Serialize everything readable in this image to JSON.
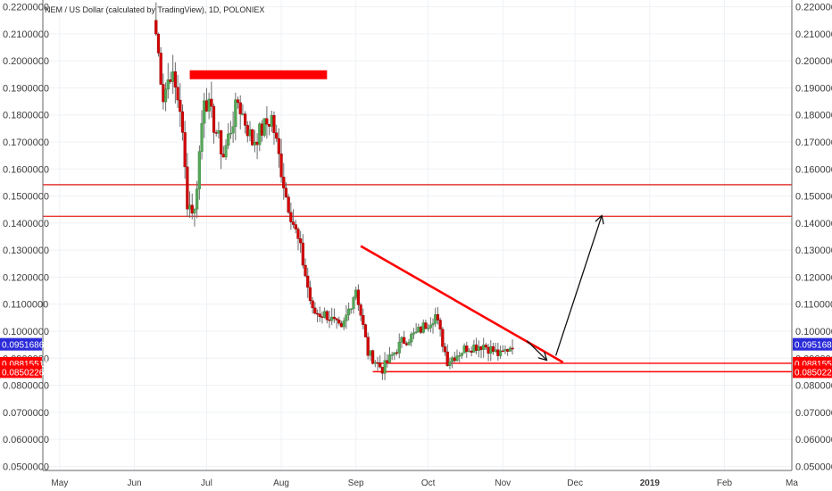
{
  "chart_data": {
    "type": "candlestick",
    "title": "NEM / US Dollar (calculated by TradingView), 1D, POLONIEX",
    "price_axis": {
      "ticks": [
        "0.2200000",
        "0.2100000",
        "0.2000000",
        "0.1900000",
        "0.1800000",
        "0.1700000",
        "0.1600000",
        "0.1500000",
        "0.1400000",
        "0.1300000",
        "0.1200000",
        "0.1100000",
        "0.1000000",
        "0.0900000",
        "0.0800000",
        "0.0700000",
        "0.0600000",
        "0.0500000"
      ],
      "tick_values": [
        0.22,
        0.21,
        0.2,
        0.19,
        0.18,
        0.17,
        0.16,
        0.15,
        0.14,
        0.13,
        0.12,
        0.11,
        0.1,
        0.09,
        0.08,
        0.07,
        0.06,
        0.05
      ],
      "range": [
        0.0485,
        0.2225
      ]
    },
    "time_axis": {
      "labels": [
        "May",
        "Jun",
        "Jul",
        "Aug",
        "Sep",
        "Oct",
        "Nov",
        "Dec",
        "2019",
        "Feb",
        "Ma"
      ],
      "bold_labels": [
        "2019"
      ],
      "range": [
        "2018-04-24",
        "2019-03-01"
      ]
    },
    "price_tags": [
      {
        "value": 0.09516868,
        "label": "0.09516868",
        "color": "#2b2bd9"
      },
      {
        "value": 0.08815512,
        "label": "0.08815512",
        "color": "#ff0000"
      },
      {
        "value": 0.0850226,
        "label": "0.08502260",
        "color": "#ff0000"
      }
    ],
    "horizontal_lines": [
      {
        "value": 0.1542,
        "color": "#e53935"
      },
      {
        "value": 0.1425,
        "color": "#e53935"
      },
      {
        "from": "2018-09-10",
        "value": 0.08815512,
        "color": "#ff0000"
      },
      {
        "from": "2018-09-08",
        "value": 0.0850226,
        "color": "#ff0000"
      }
    ],
    "highlight_box": {
      "from": "2018-06-24",
      "to": "2018-08-20",
      "top": 0.1965,
      "bottom": 0.1932,
      "color": "#ff0000"
    },
    "trendline": {
      "from": [
        "2018-09-03",
        0.1315
      ],
      "to": [
        "2018-11-26",
        0.0885
      ],
      "color": "#ff0000"
    },
    "arrows": [
      {
        "from": [
          "2018-11-11",
          0.0965
        ],
        "to": [
          "2018-11-19",
          0.0895
        ],
        "color": "#111111"
      },
      {
        "from": [
          "2018-11-23",
          0.091
        ],
        "to": [
          "2018-12-12",
          0.1425
        ],
        "color": "#111111"
      }
    ],
    "colors": {
      "up": "#53a957",
      "down": "#d50000",
      "grid": "#eef1f5"
    },
    "grid": true,
    "ohlc_sampled": [
      {
        "date": "2018-06-10",
        "o": 0.215,
        "h": 0.221,
        "l": 0.206,
        "c": 0.21
      },
      {
        "date": "2018-06-13",
        "o": 0.21,
        "h": 0.212,
        "l": 0.182,
        "c": 0.187
      },
      {
        "date": "2018-06-16",
        "o": 0.187,
        "h": 0.2,
        "l": 0.18,
        "c": 0.196
      },
      {
        "date": "2018-06-20",
        "o": 0.196,
        "h": 0.199,
        "l": 0.178,
        "c": 0.183
      },
      {
        "date": "2018-06-23",
        "o": 0.172,
        "h": 0.174,
        "l": 0.144,
        "c": 0.148
      },
      {
        "date": "2018-06-26",
        "o": 0.148,
        "h": 0.152,
        "l": 0.139,
        "c": 0.144
      },
      {
        "date": "2018-06-30",
        "o": 0.152,
        "h": 0.192,
        "l": 0.15,
        "c": 0.188
      },
      {
        "date": "2018-07-08",
        "o": 0.188,
        "h": 0.192,
        "l": 0.16,
        "c": 0.165
      },
      {
        "date": "2018-07-14",
        "o": 0.16,
        "h": 0.188,
        "l": 0.156,
        "c": 0.185
      },
      {
        "date": "2018-07-20",
        "o": 0.185,
        "h": 0.19,
        "l": 0.165,
        "c": 0.17
      },
      {
        "date": "2018-07-28",
        "o": 0.172,
        "h": 0.182,
        "l": 0.168,
        "c": 0.179
      },
      {
        "date": "2018-08-03",
        "o": 0.179,
        "h": 0.18,
        "l": 0.145,
        "c": 0.15
      },
      {
        "date": "2018-08-09",
        "o": 0.143,
        "h": 0.144,
        "l": 0.124,
        "c": 0.13
      },
      {
        "date": "2018-08-14",
        "o": 0.12,
        "h": 0.121,
        "l": 0.103,
        "c": 0.107
      },
      {
        "date": "2018-08-20",
        "o": 0.105,
        "h": 0.112,
        "l": 0.096,
        "c": 0.106
      },
      {
        "date": "2018-08-26",
        "o": 0.1,
        "h": 0.105,
        "l": 0.096,
        "c": 0.1
      },
      {
        "date": "2018-09-01",
        "o": 0.102,
        "h": 0.118,
        "l": 0.1,
        "c": 0.116
      },
      {
        "date": "2018-09-06",
        "o": 0.1,
        "h": 0.101,
        "l": 0.09,
        "c": 0.092
      },
      {
        "date": "2018-09-12",
        "o": 0.087,
        "h": 0.09,
        "l": 0.0785,
        "c": 0.086
      },
      {
        "date": "2018-09-20",
        "o": 0.088,
        "h": 0.099,
        "l": 0.086,
        "c": 0.096
      },
      {
        "date": "2018-09-26",
        "o": 0.096,
        "h": 0.104,
        "l": 0.092,
        "c": 0.099
      },
      {
        "date": "2018-10-04",
        "o": 0.1,
        "h": 0.111,
        "l": 0.098,
        "c": 0.106
      },
      {
        "date": "2018-10-09",
        "o": 0.105,
        "h": 0.106,
        "l": 0.088,
        "c": 0.089
      },
      {
        "date": "2018-10-17",
        "o": 0.092,
        "h": 0.096,
        "l": 0.088,
        "c": 0.094
      },
      {
        "date": "2018-10-24",
        "o": 0.099,
        "h": 0.101,
        "l": 0.093,
        "c": 0.095
      },
      {
        "date": "2018-10-31",
        "o": 0.088,
        "h": 0.092,
        "l": 0.0875,
        "c": 0.091
      },
      {
        "date": "2018-11-05",
        "o": 0.093,
        "h": 0.0965,
        "l": 0.092,
        "c": 0.0952
      }
    ]
  }
}
